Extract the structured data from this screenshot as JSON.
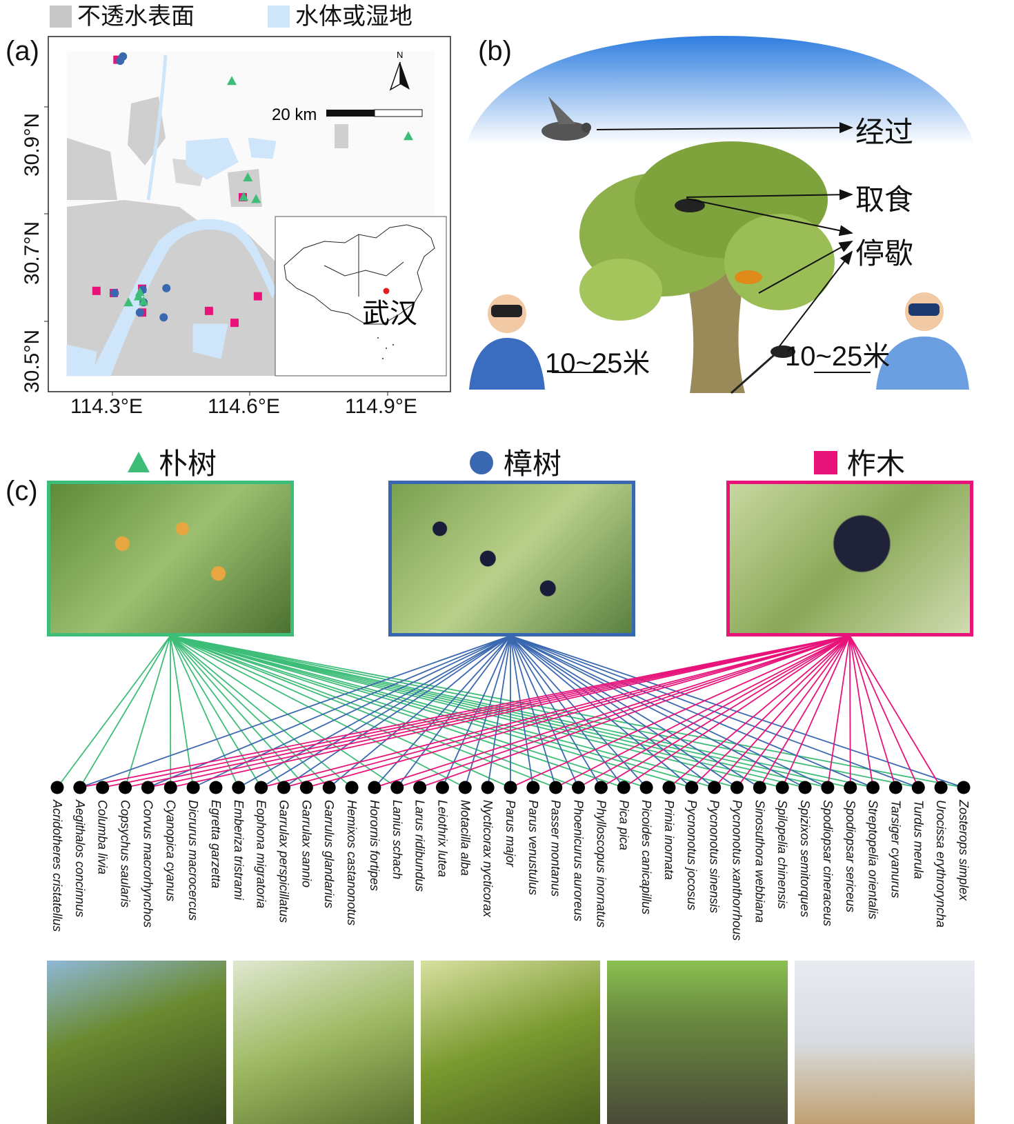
{
  "legend": [
    {
      "label": "不透水表面",
      "color": "#c8c8c8"
    },
    {
      "label": "水体或湿地",
      "color": "#cfe6fa"
    }
  ],
  "panel_a": {
    "label": "(a)",
    "y_ticks": [
      "30.9°N",
      "30.7°N",
      "30.5°N"
    ],
    "x_ticks": [
      "114.3°E",
      "114.6°E",
      "114.9°E"
    ],
    "north_label": "N",
    "scale_label": "20 km",
    "inset_city": "武汉",
    "sites": {
      "朴树": [
        [
          114.561,
          31.022
        ],
        [
          114.947,
          30.92
        ],
        [
          114.596,
          30.844
        ],
        [
          114.587,
          30.808
        ],
        [
          114.614,
          30.804
        ],
        [
          114.335,
          30.613
        ],
        [
          114.357,
          30.624
        ],
        [
          114.368,
          30.615
        ],
        [
          114.36,
          30.632
        ]
      ],
      "樟树": [
        [
          114.323,
          31.067
        ],
        [
          114.317,
          31.059
        ],
        [
          114.305,
          30.63
        ],
        [
          114.366,
          30.636
        ],
        [
          114.418,
          30.639
        ],
        [
          114.36,
          30.594
        ],
        [
          114.412,
          30.585
        ],
        [
          114.368,
          30.613
        ]
      ],
      "柞木": [
        [
          114.311,
          31.061
        ],
        [
          114.265,
          30.634
        ],
        [
          114.303,
          30.63
        ],
        [
          114.365,
          30.638
        ],
        [
          114.365,
          30.594
        ],
        [
          114.585,
          30.807
        ],
        [
          114.511,
          30.597
        ],
        [
          114.567,
          30.575
        ],
        [
          114.618,
          30.624
        ]
      ]
    }
  },
  "panel_b": {
    "label": "(b)",
    "behaviors": [
      "经过",
      "取食",
      "停歇"
    ],
    "distance_left": "10~25米",
    "distance_right": "10~25米"
  },
  "panel_c": {
    "label": "(c)",
    "trees": [
      {
        "name": "朴树",
        "marker": "triangle",
        "color": "#3dbd78"
      },
      {
        "name": "樟树",
        "marker": "circle",
        "color": "#3a68b0"
      },
      {
        "name": "柞木",
        "marker": "square",
        "color": "#e8137a"
      }
    ],
    "species": [
      "Acridotheres cristatellus",
      "Aegithalos concinnus",
      "Columba livia",
      "Copsychus saularis",
      "Corvus macrorhynchos",
      "Cyanopica cyanus",
      "Dicrurus macrocercus",
      "Egretta garzetta",
      "Emberiza tristrami",
      "Eophona migratoria",
      "Garrulax perspicillatus",
      "Garrulax sannio",
      "Garrulus glandarius",
      "Hemixos castanonotus",
      "Horornis fortipes",
      "Lanius schach",
      "Larus ridibundus",
      "Leiothrix lutea",
      "Motacilla alba",
      "Nycticorax nycticorax",
      "Parus major",
      "Parus venustulus",
      "Passer montanus",
      "Phoenicurus auroreus",
      "Phylloscopus inornatus",
      "Pica pica",
      "Picoides canicapillus",
      "Prinia inornata",
      "Pycnonotus jocosus",
      "Pycnonotus sinensis",
      "Pycnonotus xanthorrhous",
      "Sinosuthora webbiana",
      "Spilopelia chinensis",
      "Spizixos semitorques",
      "Spodiopsar cineraceus",
      "Spodiopsar sericeus",
      "Streptopelia orientalis",
      "Tarsiger cyanurus",
      "Turdus merula",
      "Urocissa erythroryncha",
      "Zosterops simplex"
    ],
    "links": {
      "朴树": [
        0,
        1,
        3,
        5,
        6,
        8,
        9,
        10,
        11,
        12,
        13,
        15,
        18,
        20,
        22,
        23,
        25,
        26,
        28,
        29,
        30,
        32,
        33,
        34,
        35,
        36,
        38,
        40
      ],
      "樟树": [
        1,
        4,
        6,
        8,
        9,
        10,
        12,
        14,
        15,
        17,
        18,
        19,
        20,
        21,
        22,
        23,
        24,
        25,
        26,
        28,
        29,
        30,
        31,
        33,
        34,
        36,
        38,
        40
      ],
      "柞木": [
        1,
        2,
        3,
        4,
        5,
        9,
        10,
        11,
        14,
        15,
        16,
        20,
        22,
        23,
        24,
        25,
        27,
        28,
        29,
        30,
        31,
        32,
        34,
        35,
        36,
        37,
        38,
        39
      ]
    }
  }
}
